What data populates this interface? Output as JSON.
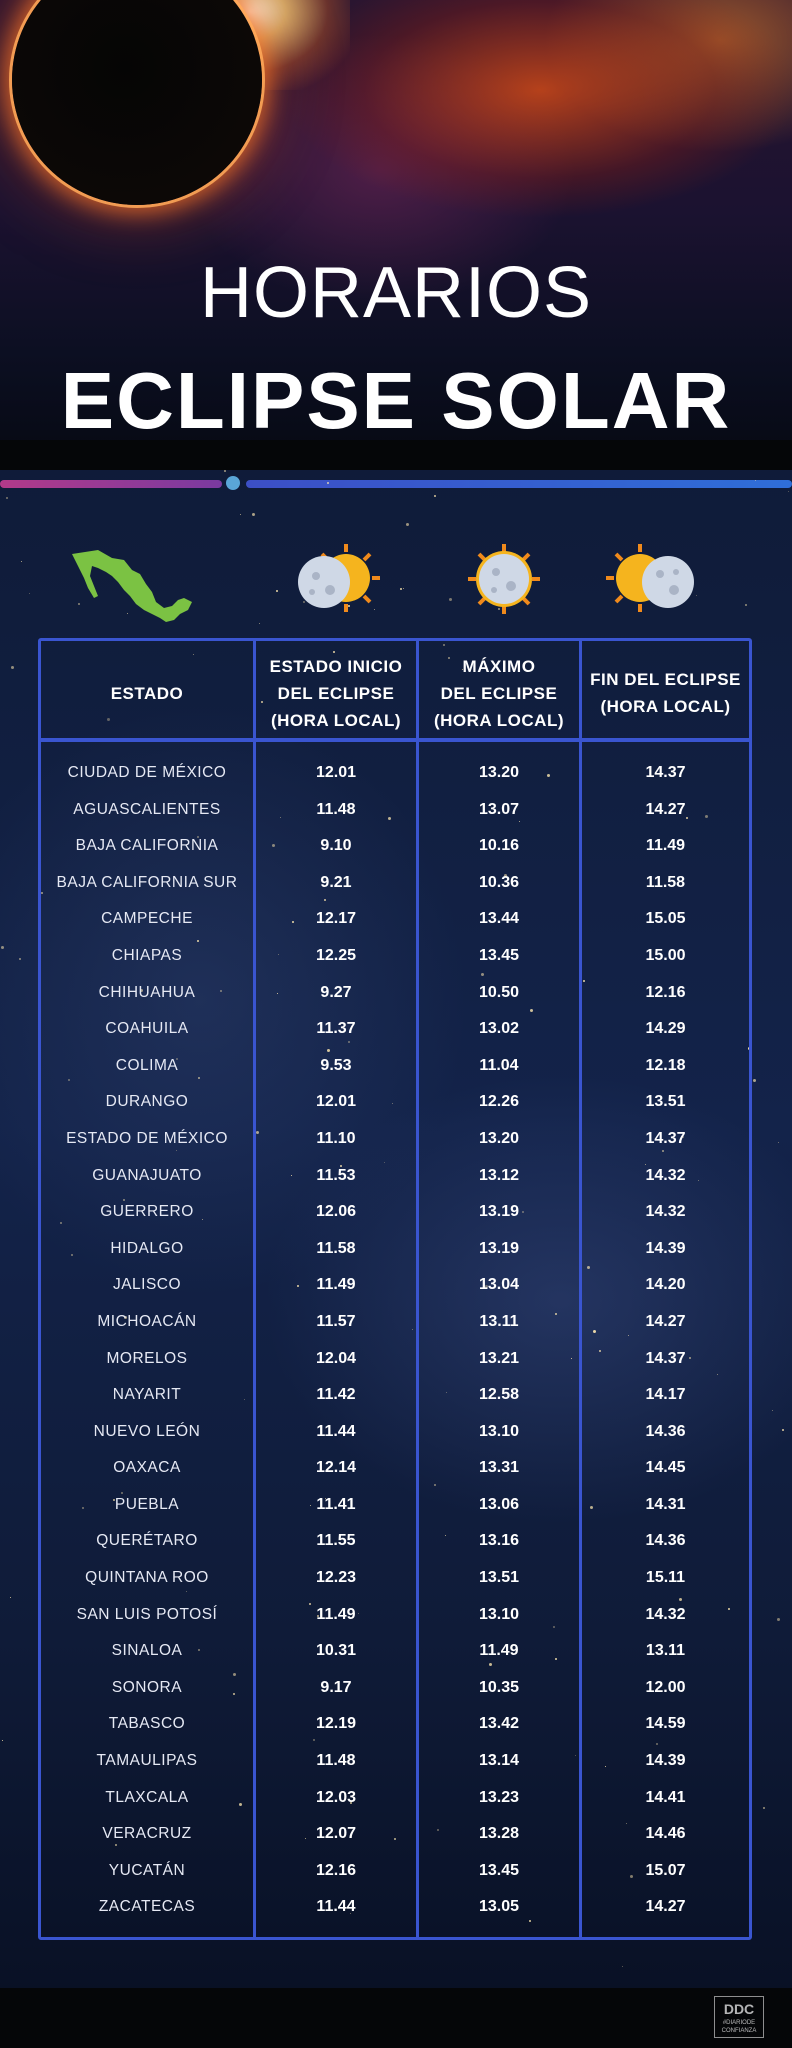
{
  "title": {
    "line1": "HORARIOS",
    "line2": "ECLIPSE SOLAR"
  },
  "colors": {
    "accent_blue": "#3a55d0",
    "accent_magenta": "#b23a8a",
    "background": "#101d3c",
    "sun": "#f5b41e",
    "moon": "#cfd8e6",
    "map": "#7bc243"
  },
  "icons": {
    "map": "mexico-map-icon",
    "start": "eclipse-start-icon",
    "max": "eclipse-max-icon",
    "end": "eclipse-end-icon"
  },
  "table": {
    "headers": {
      "state": "ESTADO",
      "start": "ESTADO INICIO\nDEL ECLIPSE\n(HORA LOCAL)",
      "max": "MÁXIMO\nDEL ECLIPSE\n(HORA LOCAL)",
      "end": "FIN DEL ECLIPSE\n(HORA LOCAL)"
    },
    "rows": [
      {
        "state": "CIUDAD DE MÉXICO",
        "start": "12.01",
        "max": "13.20",
        "end": "14.37"
      },
      {
        "state": "AGUASCALIENTES",
        "start": "11.48",
        "max": "13.07",
        "end": "14.27"
      },
      {
        "state": "BAJA CALIFORNIA",
        "start": "9.10",
        "max": "10.16",
        "end": "11.49"
      },
      {
        "state": "BAJA CALIFORNIA SUR",
        "start": "9.21",
        "max": "10.36",
        "end": "11.58"
      },
      {
        "state": "CAMPECHE",
        "start": "12.17",
        "max": "13.44",
        "end": "15.05"
      },
      {
        "state": "CHIAPAS",
        "start": "12.25",
        "max": "13.45",
        "end": "15.00"
      },
      {
        "state": "CHIHUAHUA",
        "start": "9.27",
        "max": "10.50",
        "end": "12.16"
      },
      {
        "state": "COAHUILA",
        "start": "11.37",
        "max": "13.02",
        "end": "14.29"
      },
      {
        "state": "COLIMA",
        "start": "9.53",
        "max": "11.04",
        "end": "12.18"
      },
      {
        "state": "DURANGO",
        "start": "12.01",
        "max": "12.26",
        "end": "13.51"
      },
      {
        "state": "ESTADO DE MÉXICO",
        "start": "11.10",
        "max": "13.20",
        "end": "14.37"
      },
      {
        "state": "GUANAJUATO",
        "start": "11.53",
        "max": "13.12",
        "end": "14.32"
      },
      {
        "state": "GUERRERO",
        "start": "12.06",
        "max": "13.19",
        "end": "14.32"
      },
      {
        "state": "HIDALGO",
        "start": "11.58",
        "max": "13.19",
        "end": "14.39"
      },
      {
        "state": "JALISCO",
        "start": "11.49",
        "max": "13.04",
        "end": "14.20"
      },
      {
        "state": "MICHOACÁN",
        "start": "11.57",
        "max": "13.11",
        "end": "14.27"
      },
      {
        "state": "MORELOS",
        "start": "12.04",
        "max": "13.21",
        "end": "14.37"
      },
      {
        "state": "NAYARIT",
        "start": "11.42",
        "max": "12.58",
        "end": "14.17"
      },
      {
        "state": "NUEVO LEÓN",
        "start": "11.44",
        "max": "13.10",
        "end": "14.36"
      },
      {
        "state": "OAXACA",
        "start": "12.14",
        "max": "13.31",
        "end": "14.45"
      },
      {
        "state": "PUEBLA",
        "start": "11.41",
        "max": "13.06",
        "end": "14.31"
      },
      {
        "state": "QUERÉTARO",
        "start": "11.55",
        "max": "13.16",
        "end": "14.36"
      },
      {
        "state": "QUINTANA ROO",
        "start": "12.23",
        "max": "13.51",
        "end": "15.11"
      },
      {
        "state": "SAN LUIS POTOSÍ",
        "start": "11.49",
        "max": "13.10",
        "end": "14.32"
      },
      {
        "state": "SINALOA",
        "start": "10.31",
        "max": "11.49",
        "end": "13.11"
      },
      {
        "state": "SONORA",
        "start": "9.17",
        "max": "10.35",
        "end": "12.00"
      },
      {
        "state": "TABASCO",
        "start": "12.19",
        "max": "13.42",
        "end": "14.59"
      },
      {
        "state": "TAMAULIPAS",
        "start": "11.48",
        "max": "13.14",
        "end": "14.39"
      },
      {
        "state": "TLAXCALA",
        "start": "12.03",
        "max": "13.23",
        "end": "14.41"
      },
      {
        "state": "VERACRUZ",
        "start": "12.07",
        "max": "13.28",
        "end": "14.46"
      },
      {
        "state": "YUCATÁN",
        "start": "12.16",
        "max": "13.45",
        "end": "15.07"
      },
      {
        "state": "ZACATECAS",
        "start": "11.44",
        "max": "13.05",
        "end": "14.27"
      }
    ]
  },
  "footer": {
    "logo_main": "DDC",
    "logo_sub": "#DIARIODE CONFIANZA"
  }
}
